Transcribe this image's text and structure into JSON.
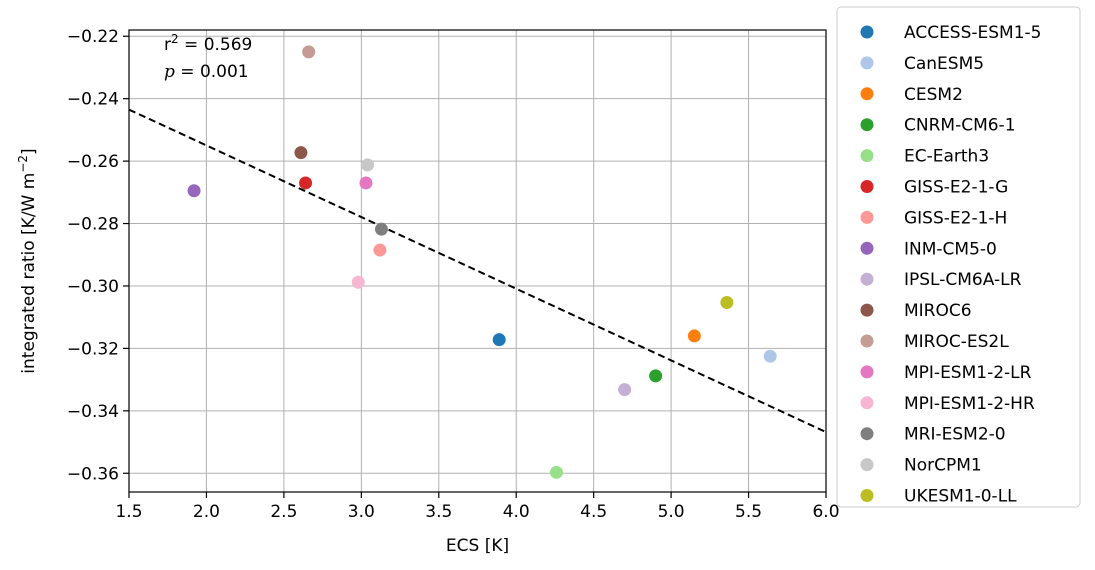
{
  "chart_data": {
    "type": "scatter",
    "xlabel": "ECS [K]",
    "ylabel_main": "integrated ratio [K/W m",
    "ylabel_sup": "−2",
    "ylabel_end": "]",
    "xlim": [
      1.5,
      6.0
    ],
    "ylim": [
      -0.366,
      -0.218
    ],
    "xticks": [
      1.5,
      2.0,
      2.5,
      3.0,
      3.5,
      4.0,
      4.5,
      5.0,
      5.5,
      6.0
    ],
    "xtick_labels": [
      "1.5",
      "2.0",
      "2.5",
      "3.0",
      "3.5",
      "4.0",
      "4.5",
      "5.0",
      "5.5",
      "6.0"
    ],
    "yticks": [
      -0.36,
      -0.34,
      -0.32,
      -0.3,
      -0.28,
      -0.26,
      -0.24,
      -0.22
    ],
    "ytick_labels": [
      "−0.36",
      "−0.34",
      "−0.32",
      "−0.30",
      "−0.28",
      "−0.26",
      "−0.24",
      "−0.22"
    ],
    "grid": true,
    "legend_position": "outside-right",
    "annotation": {
      "r2_prefix": "r",
      "r2_sup": "2",
      "r2_value": " = 0.569",
      "p_symbol": "p",
      "p_value": " = 0.001"
    },
    "fit_line": {
      "x": [
        1.5,
        6.0
      ],
      "y": [
        -0.2435,
        -0.3468
      ],
      "style": "dashed",
      "color": "#000000"
    },
    "series": [
      {
        "name": "ACCESS-ESM1-5",
        "x": 3.89,
        "y": -0.3172,
        "color": "#1f77b4"
      },
      {
        "name": "CanESM5",
        "x": 5.64,
        "y": -0.3225,
        "color": "#aec7e8"
      },
      {
        "name": "CESM2",
        "x": 5.15,
        "y": -0.316,
        "color": "#ff7f0e"
      },
      {
        "name": "CNRM-CM6-1",
        "x": 4.9,
        "y": -0.3288,
        "color": "#2ca02c"
      },
      {
        "name": "EC-Earth3",
        "x": 4.26,
        "y": -0.3597,
        "color": "#98df8a"
      },
      {
        "name": "GISS-E2-1-G",
        "x": 2.64,
        "y": -0.267,
        "color": "#d62728"
      },
      {
        "name": "GISS-E2-1-H",
        "x": 3.12,
        "y": -0.2885,
        "color": "#ff9896"
      },
      {
        "name": "INM-CM5-0",
        "x": 1.92,
        "y": -0.2695,
        "color": "#9467bd"
      },
      {
        "name": "IPSL-CM6A-LR",
        "x": 4.7,
        "y": -0.3332,
        "color": "#c5b0d5"
      },
      {
        "name": "MIROC6",
        "x": 2.61,
        "y": -0.2573,
        "color": "#8c564b"
      },
      {
        "name": "MIROC-ES2L",
        "x": 2.66,
        "y": -0.225,
        "color": "#c49c94"
      },
      {
        "name": "MPI-ESM1-2-LR",
        "x": 3.03,
        "y": -0.267,
        "color": "#e377c2"
      },
      {
        "name": "MPI-ESM1-2-HR",
        "x": 2.98,
        "y": -0.2988,
        "color": "#f7b6d2"
      },
      {
        "name": "MRI-ESM2-0",
        "x": 3.13,
        "y": -0.2818,
        "color": "#7f7f7f"
      },
      {
        "name": "NorCPM1",
        "x": 3.04,
        "y": -0.2612,
        "color": "#c7c7c7"
      },
      {
        "name": "UKESM1-0-LL",
        "x": 5.36,
        "y": -0.3053,
        "color": "#bcbd22"
      }
    ]
  }
}
